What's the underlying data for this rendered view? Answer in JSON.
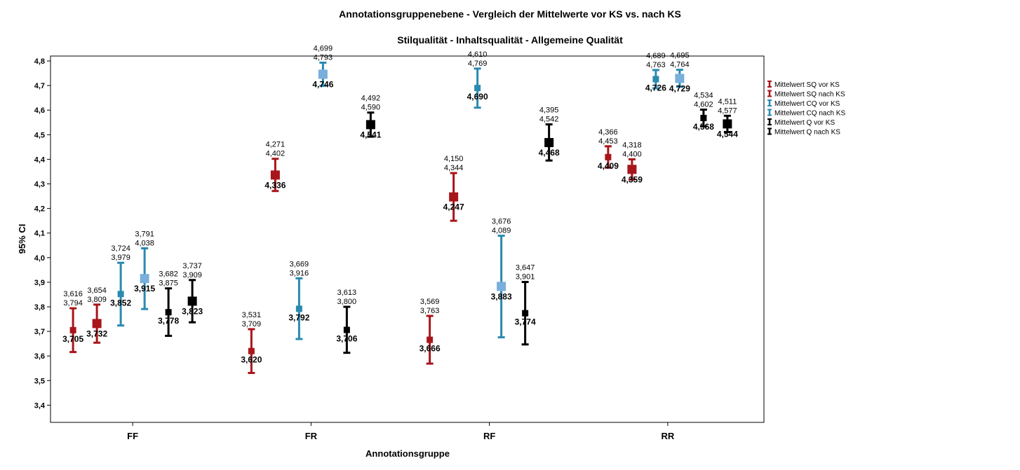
{
  "chart_data": {
    "type": "errorbar",
    "title": "Annotationsgruppenebene - Vergleich der Mittelwerte vor KS vs. nach KS",
    "subtitle": "Stilqualität - Inhaltsqualität - Allgemeine Qualität",
    "xlabel": "Annotationsgruppe",
    "ylabel": "95% CI",
    "ylim": [
      3.33,
      4.82
    ],
    "yticks": [
      "3,4",
      "3,5",
      "3,6",
      "3,7",
      "3,8",
      "3,9",
      "4,0",
      "4,1",
      "4,2",
      "4,3",
      "4,4",
      "4,5",
      "4,6",
      "4,7",
      "4,8"
    ],
    "categories": [
      "FF",
      "FR",
      "RF",
      "RR"
    ],
    "legend_position": "right",
    "series": [
      {
        "name": "Mittelwert SQ vor KS",
        "color": "#a8151b",
        "marker_size": "small",
        "points": [
          {
            "category": "FF",
            "mean": 3.705,
            "low": 3.616,
            "high": 3.794,
            "mean_label": "3,705",
            "low_label": "3,616",
            "high_label": "3,794"
          },
          {
            "category": "FR",
            "mean": 3.62,
            "low": 3.531,
            "high": 3.709,
            "mean_label": "3,620",
            "low_label": "3,531",
            "high_label": "3,709"
          },
          {
            "category": "RF",
            "mean": 3.666,
            "low": 3.569,
            "high": 3.763,
            "mean_label": "3,666",
            "low_label": "3,569",
            "high_label": "3,763"
          },
          {
            "category": "RR",
            "mean": 4.409,
            "low": 4.366,
            "high": 4.453,
            "mean_label": "4,409",
            "low_label": "4,366",
            "high_label": "4,453"
          }
        ]
      },
      {
        "name": "Mittelwert SQ nach KS",
        "color": "#a8151b",
        "marker_size": "large",
        "points": [
          {
            "category": "FF",
            "mean": 3.732,
            "low": 3.654,
            "high": 3.809,
            "mean_label": "3,732",
            "low_label": "3,654",
            "high_label": "3,809"
          },
          {
            "category": "FR",
            "mean": 4.336,
            "low": 4.271,
            "high": 4.402,
            "mean_label": "4,336",
            "low_label": "4,271",
            "high_label": "4,402"
          },
          {
            "category": "RF",
            "mean": 4.247,
            "low": 4.15,
            "high": 4.344,
            "mean_label": "4,247",
            "low_label": "4,150",
            "high_label": "4,344"
          },
          {
            "category": "RR",
            "mean": 4.359,
            "low": 4.318,
            "high": 4.4,
            "mean_label": "4,359",
            "low_label": "4,318",
            "high_label": "4,400"
          }
        ]
      },
      {
        "name": "Mittelwert CQ vor KS",
        "color": "#2a8ab0",
        "marker_color": "#2a8ab0",
        "marker_size": "small",
        "points": [
          {
            "category": "FF",
            "mean": 3.852,
            "low": 3.724,
            "high": 3.979,
            "mean_label": "3,852",
            "low_label": "3,724",
            "high_label": "3,979"
          },
          {
            "category": "FR",
            "mean": 3.792,
            "low": 3.669,
            "high": 3.916,
            "mean_label": "3,792",
            "low_label": "3,669",
            "high_label": "3,916"
          },
          {
            "category": "RF",
            "mean": 4.69,
            "low": 4.61,
            "high": 4.769,
            "mean_label": "4,690",
            "low_label": "4,610",
            "high_label": "4,769"
          },
          {
            "category": "RR",
            "mean": 4.726,
            "low": 4.689,
            "high": 4.763,
            "mean_label": "4,726",
            "low_label": "4,689",
            "high_label": "4,763"
          }
        ]
      },
      {
        "name": "Mittelwert CQ nach KS",
        "color": "#2a8ab0",
        "marker_color": "#7aaedb",
        "marker_size": "large",
        "points": [
          {
            "category": "FF",
            "mean": 3.915,
            "low": 3.791,
            "high": 4.038,
            "mean_label": "3,915",
            "low_label": "3,791",
            "high_label": "4,038"
          },
          {
            "category": "FR",
            "mean": 4.746,
            "low": 4.699,
            "high": 4.793,
            "mean_label": "4,746",
            "low_label": "4,699",
            "high_label": "4,793"
          },
          {
            "category": "RF",
            "mean": 3.883,
            "low": 3.676,
            "high": 4.089,
            "mean_label": "3,883",
            "low_label": "3,676",
            "high_label": "4,089"
          },
          {
            "category": "RR",
            "mean": 4.729,
            "low": 4.695,
            "high": 4.764,
            "mean_label": "4,729",
            "low_label": "4,695",
            "high_label": "4,764"
          }
        ]
      },
      {
        "name": "Mittelwert Q vor KS",
        "color": "#000000",
        "marker_size": "small",
        "points": [
          {
            "category": "FF",
            "mean": 3.778,
            "low": 3.682,
            "high": 3.875,
            "mean_label": "3,778",
            "low_label": "3,682",
            "high_label": "3,875"
          },
          {
            "category": "FR",
            "mean": 3.706,
            "low": 3.613,
            "high": 3.8,
            "mean_label": "3,706",
            "low_label": "3,613",
            "high_label": "3,800"
          },
          {
            "category": "RF",
            "mean": 3.774,
            "low": 3.647,
            "high": 3.901,
            "mean_label": "3,774",
            "low_label": "3,647",
            "high_label": "3,901"
          },
          {
            "category": "RR",
            "mean": 4.568,
            "low": 4.534,
            "high": 4.602,
            "mean_label": "4,568",
            "low_label": "4,534",
            "high_label": "4,602"
          }
        ]
      },
      {
        "name": "Mittelwert Q nach KS",
        "color": "#000000",
        "marker_size": "large",
        "points": [
          {
            "category": "FF",
            "mean": 3.823,
            "low": 3.737,
            "high": 3.909,
            "mean_label": "3,823",
            "low_label": "3,737",
            "high_label": "3,909"
          },
          {
            "category": "FR",
            "mean": 4.541,
            "low": 4.492,
            "high": 4.59,
            "mean_label": "4,541",
            "low_label": "4,492",
            "high_label": "4,590"
          },
          {
            "category": "RF",
            "mean": 4.468,
            "low": 4.395,
            "high": 4.542,
            "mean_label": "4,468",
            "low_label": "4,395",
            "high_label": "4,542"
          },
          {
            "category": "RR",
            "mean": 4.544,
            "low": 4.511,
            "high": 4.577,
            "mean_label": "4,544",
            "low_label": "4,511",
            "high_label": "4,577"
          }
        ]
      }
    ]
  }
}
